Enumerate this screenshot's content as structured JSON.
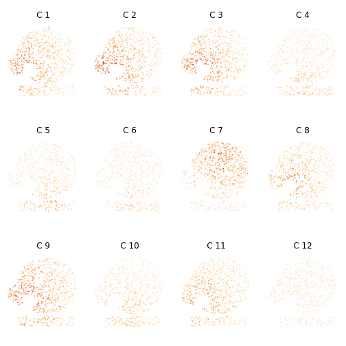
{
  "chart_data": {
    "type": "scatter",
    "layout": "grid",
    "rows": 3,
    "cols": 4,
    "axes": "hidden",
    "grid": false,
    "colormap": [
      "#f4f4f4",
      "#fde0b4",
      "#f7b56e",
      "#e97a35",
      "#c8432a",
      "#8f1d1d"
    ],
    "value_range": [
      0,
      1
    ],
    "panels": [
      {
        "title": "C 1",
        "hot_x": 0.25,
        "hot_y": 0.55,
        "level": 0.55,
        "spread": 0.3
      },
      {
        "title": "C 2",
        "hot_x": 0.22,
        "hot_y": 0.58,
        "level": 0.6,
        "spread": 0.32
      },
      {
        "title": "C 3",
        "hot_x": 0.28,
        "hot_y": 0.56,
        "level": 0.58,
        "spread": 0.3
      },
      {
        "title": "C 4",
        "hot_x": 0.5,
        "hot_y": 0.9,
        "level": 0.3,
        "spread": 0.25
      },
      {
        "title": "C 5",
        "hot_x": 0.6,
        "hot_y": 0.9,
        "level": 0.35,
        "spread": 0.22
      },
      {
        "title": "C 6",
        "hot_x": 0.55,
        "hot_y": 0.92,
        "level": 0.2,
        "spread": 0.2
      },
      {
        "title": "C 7",
        "hot_x": 0.6,
        "hot_y": 0.25,
        "level": 0.5,
        "spread": 0.3
      },
      {
        "title": "C 8",
        "hot_x": 0.35,
        "hot_y": 0.55,
        "level": 0.45,
        "spread": 0.25
      },
      {
        "title": "C 9",
        "hot_x": 0.3,
        "hot_y": 0.55,
        "level": 0.55,
        "spread": 0.35
      },
      {
        "title": "C 10",
        "hot_x": 0.45,
        "hot_y": 0.8,
        "level": 0.28,
        "spread": 0.25
      },
      {
        "title": "C 11",
        "hot_x": 0.28,
        "hot_y": 0.6,
        "level": 0.45,
        "spread": 0.3
      },
      {
        "title": "C 12",
        "hot_x": 0.3,
        "hot_y": 0.55,
        "level": 0.12,
        "spread": 0.15
      }
    ]
  }
}
